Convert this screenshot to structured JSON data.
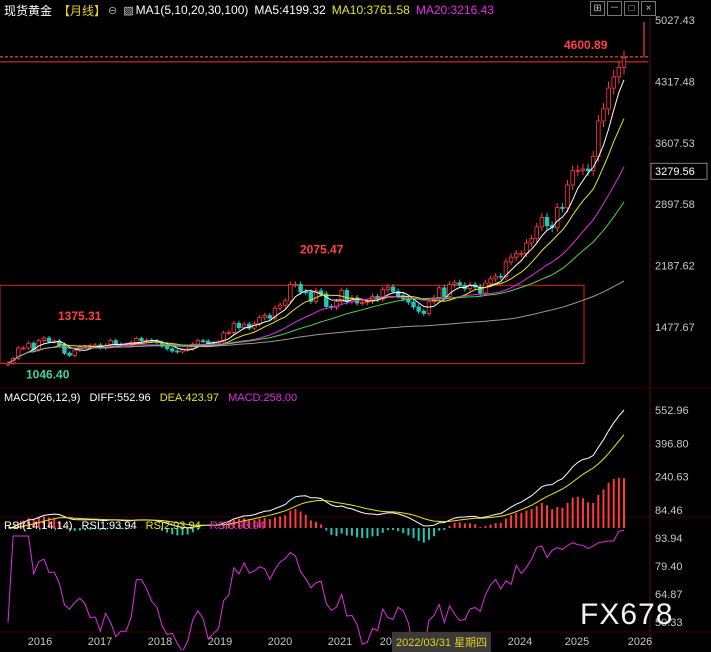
{
  "header": {
    "title": "现货黄金",
    "period": "【月线】",
    "ma_params": "MA1(5,10,20,30,100)",
    "ma5": "MA5:4199.32",
    "ma10": "MA10:3761.58",
    "ma20": "MA20:3216.43"
  },
  "macd_header": {
    "params": "MACD(26,12,9)",
    "diff": "DIFF:552.96",
    "dea": "DEA:423.97",
    "macd": "MACD:258.00"
  },
  "rsi_header": {
    "params": "RSI(14,14,14)",
    "rsi1": "RSI1:93.94",
    "rsi2": "RSI2:93.94",
    "rsi3": "RSI3:93.94"
  },
  "watermark": "FX678",
  "crosshair_date": "2022/03/31 星期四",
  "price_box_label": "3279.56",
  "colors": {
    "up": "#ff3b3b",
    "down": "#22c7b8",
    "ma5": "#ffffff",
    "ma10": "#e6e61e",
    "ma20": "#e02ee0",
    "ma30": "#4cd44c",
    "ma100": "#9a9a9a",
    "axis": "#c8c8c8",
    "box": "#e02020"
  },
  "chart_data": [
    {
      "type": "candlestick",
      "title": "现货黄金 【月线】",
      "y_ticks": [
        5027.43,
        4317.48,
        3607.53,
        2897.58,
        2187.62,
        1477.67
      ],
      "ylim": [
        1000,
        5180
      ],
      "x_ticks": [
        "2016",
        "2017",
        "2018",
        "2019",
        "2020",
        "2021",
        "2022",
        "2024",
        "2025",
        "2026"
      ],
      "annotations": [
        {
          "text": "4600.89",
          "kind": "high"
        },
        {
          "text": "2075.47",
          "kind": "high"
        },
        {
          "text": "1375.31",
          "kind": "high"
        },
        {
          "text": "1046.40",
          "kind": "low"
        }
      ],
      "reference_line": 4600.89,
      "series": [
        {
          "name": "MA5",
          "value": 4199.32
        },
        {
          "name": "MA10",
          "value": 3761.58
        },
        {
          "name": "MA20",
          "value": 3216.43
        }
      ],
      "closes_monthly_from_2015_12": [
        1060,
        1115,
        1235,
        1235,
        1290,
        1215,
        1320,
        1350,
        1310,
        1315,
        1275,
        1175,
        1150,
        1210,
        1250,
        1250,
        1265,
        1270,
        1240,
        1265,
        1320,
        1280,
        1270,
        1275,
        1300,
        1345,
        1320,
        1325,
        1315,
        1300,
        1255,
        1225,
        1200,
        1190,
        1215,
        1225,
        1280,
        1320,
        1315,
        1290,
        1285,
        1305,
        1410,
        1415,
        1520,
        1470,
        1510,
        1465,
        1515,
        1585,
        1610,
        1580,
        1695,
        1730,
        1780,
        1970,
        1970,
        1885,
        1880,
        1775,
        1895,
        1860,
        1715,
        1705,
        1770,
        1900,
        1770,
        1815,
        1755,
        1760,
        1775,
        1830,
        1800,
        1910,
        1940,
        1890,
        1840,
        1805,
        1765,
        1710,
        1660,
        1635,
        1770,
        1815,
        1930,
        1830,
        1970,
        1990,
        1960,
        1920,
        1965,
        1940,
        1870,
        1985,
        2035,
        2065,
        2060,
        2230,
        2285,
        2325,
        2325,
        2450,
        2500,
        2635,
        2745,
        2650,
        2625,
        2860,
        2855,
        3120,
        3285,
        3290,
        3305,
        3285,
        3450,
        3860,
        4000,
        4240,
        4370,
        4480,
        4590
      ]
    },
    {
      "type": "macd",
      "title": "MACD(26,12,9)",
      "y_ticks": [
        552.96,
        396.8,
        240.63,
        84.46
      ],
      "DIFF": 552.96,
      "DEA": 423.97,
      "MACD": 258.0
    },
    {
      "type": "line",
      "title": "RSI(14,14,14)",
      "y_ticks": [
        93.94,
        79.4,
        64.87,
        50.33
      ],
      "RSI1": 93.94,
      "RSI2": 93.94,
      "RSI3": 93.94
    }
  ]
}
